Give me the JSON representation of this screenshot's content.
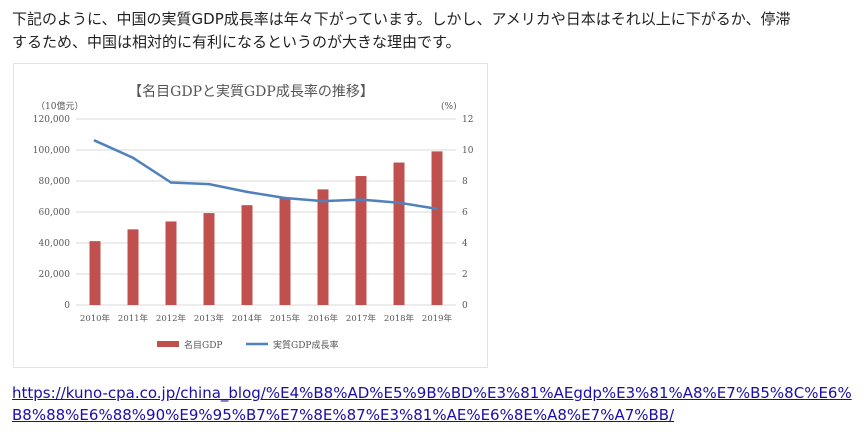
{
  "article": {
    "paragraph_lines": [
      "下記のように、中国の実質GDP成長率は年々下がっています。しかし、アメリカや日本はそれ以上に下がるか、停滞",
      "するため、中国は相対的に有利になるというのが大きな理由です。"
    ],
    "link_lines": [
      "https://kuno-cpa.co.jp/china_blog/%E4%B8%AD%E5%9B%BD%E3%81%AEgdp%E3%81%A8%E7%B5%8C%E6%",
      "B8%88%E6%88%90%E9%95%B7%E7%8E%87%E3%81%AE%E6%8E%A8%E7%A7%BB/"
    ]
  },
  "chart_data": {
    "type": "bar",
    "title": "【名目GDPと実質GDP成長率の推移】",
    "left_axis_unit": "（10億元）",
    "right_axis_unit": "(%)",
    "categories": [
      "2010年",
      "2011年",
      "2012年",
      "2013年",
      "2014年",
      "2015年",
      "2016年",
      "2017年",
      "2018年",
      "2019年"
    ],
    "y_left_ticks": [
      "0",
      "20,000",
      "40,000",
      "60,000",
      "80,000",
      "100,000",
      "120,000"
    ],
    "y_right_ticks": [
      "0",
      "2",
      "4",
      "6",
      "8",
      "10",
      "12"
    ],
    "ylim_left": [
      0,
      120000
    ],
    "ylim_right": [
      0,
      12
    ],
    "series": [
      {
        "name": "名目GDP",
        "type": "bar",
        "axis": "left",
        "color": "#c0504d",
        "values": [
          41200,
          48800,
          53900,
          59300,
          64400,
          68900,
          74600,
          83200,
          91900,
          99100
        ]
      },
      {
        "name": "実質GDP成長率",
        "type": "line",
        "axis": "right",
        "color": "#4f81bd",
        "values": [
          10.6,
          9.5,
          7.9,
          7.8,
          7.3,
          6.9,
          6.7,
          6.8,
          6.6,
          6.2
        ]
      }
    ],
    "grid": true,
    "legend_position": "bottom"
  }
}
